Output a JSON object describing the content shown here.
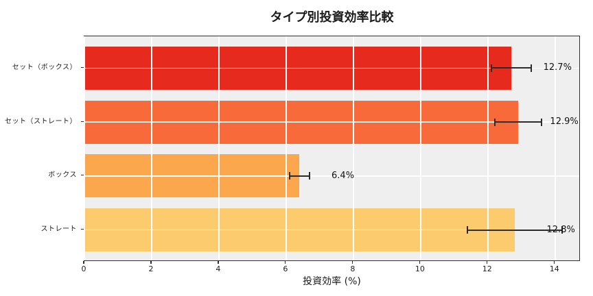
{
  "chart_data": {
    "type": "bar",
    "orientation": "horizontal",
    "title": "タイプ別投資効率比較",
    "xlabel": "投資効率 (%)",
    "ylabel": "",
    "categories": [
      "セット（ボックス）",
      "セット（ストレート）",
      "ボックス",
      "ストレート"
    ],
    "values": [
      12.7,
      12.9,
      6.4,
      12.8
    ],
    "errors": [
      0.6,
      0.7,
      0.3,
      1.4
    ],
    "value_labels": [
      "12.7%",
      "12.9%",
      "6.4%",
      "12.8%"
    ],
    "bar_colors": [
      "#E62A1D",
      "#F96A3A",
      "#FAA74E",
      "#FCCB6E"
    ],
    "x_ticks": [
      0,
      2,
      4,
      6,
      8,
      10,
      12,
      14
    ],
    "xlim": [
      0,
      14.76
    ],
    "grid": true,
    "legend": false,
    "plot_background": "#EFEFEF",
    "grid_color": "#FFFFFF",
    "error_bar_color": "#2B2B2B",
    "figure_background": "#FFFFFF"
  }
}
